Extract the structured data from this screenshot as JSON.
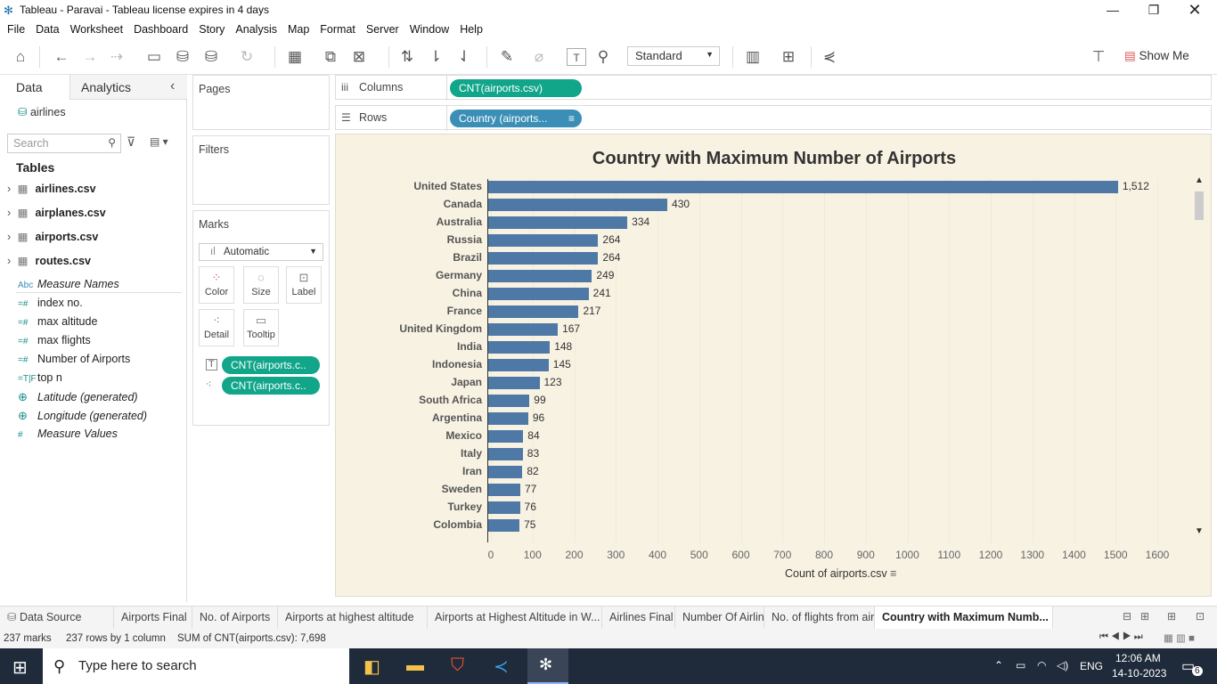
{
  "window": {
    "title": "Tableau - Paravai - Tableau license expires in 4 days"
  },
  "menu": [
    "File",
    "Data",
    "Worksheet",
    "Dashboard",
    "Story",
    "Analysis",
    "Map",
    "Format",
    "Server",
    "Window",
    "Help"
  ],
  "toolbar": {
    "fit_mode": "Standard",
    "show_me": "Show Me"
  },
  "left_pane": {
    "tabs": {
      "data": "Data",
      "analytics": "Analytics"
    },
    "datasource": "airlines",
    "search_placeholder": "Search",
    "tables_heading": "Tables",
    "tables": [
      "airlines.csv",
      "airplanes.csv",
      "airports.csv",
      "routes.csv"
    ],
    "fields": [
      {
        "icon": "Abc",
        "name": "Measure Names"
      },
      {
        "icon": "=#",
        "name": "index no."
      },
      {
        "icon": "=#",
        "name": "max altitude"
      },
      {
        "icon": "=#",
        "name": "max flights"
      },
      {
        "icon": "=#",
        "name": "Number of Airports"
      },
      {
        "icon": "=T|F",
        "name": "top n"
      },
      {
        "icon": "globe-icon",
        "name": "Latitude (generated)"
      },
      {
        "icon": "globe-icon",
        "name": "Longitude (generated)"
      },
      {
        "icon": "#",
        "name": "Measure Values"
      }
    ]
  },
  "shelves": {
    "pages": "Pages",
    "filters": "Filters",
    "marks": "Marks",
    "mark_type": "Automatic",
    "mark_buttons": [
      "Color",
      "Size",
      "Label",
      "Detail",
      "Tooltip"
    ],
    "mark_pills": [
      "CNT(airports.c..",
      "CNT(airports.c.."
    ],
    "columns_label": "Columns",
    "columns_pill": "CNT(airports.csv)",
    "rows_label": "Rows",
    "rows_pill": "Country (airports..."
  },
  "chart_data": {
    "type": "bar",
    "title": "Country with Maximum Number of Airports",
    "xlabel": "Count of airports.csv",
    "ylabel": "",
    "xlim": [
      0,
      1600
    ],
    "xticks": [
      0,
      100,
      200,
      300,
      400,
      500,
      600,
      700,
      800,
      900,
      1000,
      1100,
      1200,
      1300,
      1400,
      1500,
      1600
    ],
    "categories": [
      "United States",
      "Canada",
      "Australia",
      "Russia",
      "Brazil",
      "Germany",
      "China",
      "France",
      "United Kingdom",
      "India",
      "Indonesia",
      "Japan",
      "South Africa",
      "Argentina",
      "Mexico",
      "Italy",
      "Iran",
      "Sweden",
      "Turkey",
      "Colombia"
    ],
    "values": [
      1512,
      430,
      334,
      264,
      264,
      249,
      241,
      217,
      167,
      148,
      145,
      123,
      99,
      96,
      84,
      83,
      82,
      77,
      76,
      75
    ],
    "value_labels": [
      "1,512",
      "430",
      "334",
      "264",
      "264",
      "249",
      "241",
      "217",
      "167",
      "148",
      "145",
      "123",
      "99",
      "96",
      "84",
      "83",
      "82",
      "77",
      "76",
      "75"
    ],
    "orientation": "horizontal",
    "bar_color": "#4e79a7",
    "background": "#f8f2e3"
  },
  "sheet_tabs": [
    "Data Source",
    "Airports Final",
    "No. of Airports",
    "Airports at highest altitude",
    "Airports at Highest Altitude in W...",
    "Airlines Final",
    "Number Of Airlines",
    "No. of flights from airport",
    "Country with Maximum Numb..."
  ],
  "status": {
    "marks": "237 marks",
    "rows": "237 rows by 1 column",
    "sum": "SUM of CNT(airports.csv): 7,698"
  },
  "taskbar": {
    "search_placeholder": "Type here to search",
    "lang": "ENG",
    "time": "12:06 AM",
    "date": "14-10-2023",
    "notifications": "6"
  }
}
